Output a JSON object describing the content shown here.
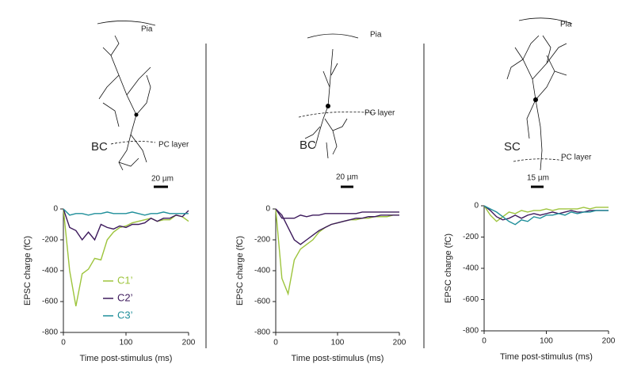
{
  "chart_data": [
    {
      "type": "line",
      "xlabel": "Time post-stimulus (ms)",
      "ylabel": "EPSC charge (fC)",
      "annotations": [
        "Pia",
        "BC",
        "PC layer",
        "20 µm"
      ],
      "x": [
        0,
        10,
        20,
        30,
        40,
        50,
        60,
        70,
        80,
        90,
        100,
        110,
        120,
        130,
        140,
        150,
        160,
        170,
        180,
        190,
        200
      ],
      "series": [
        {
          "name": "C1’",
          "color": "#9dc43c",
          "values": [
            0,
            -400,
            -630,
            -420,
            -390,
            -320,
            -330,
            -200,
            -150,
            -120,
            -110,
            -90,
            -80,
            -70,
            -60,
            -80,
            -70,
            -70,
            -40,
            -50,
            -80
          ]
        },
        {
          "name": "C2’",
          "color": "#3d1a5c",
          "values": [
            0,
            -120,
            -140,
            -200,
            -150,
            -200,
            -100,
            -120,
            -130,
            -110,
            -120,
            -100,
            -100,
            -90,
            -60,
            -80,
            -60,
            -60,
            -40,
            -50,
            -10
          ]
        },
        {
          "name": "C3’",
          "color": "#1f8f9a",
          "values": [
            0,
            -40,
            -30,
            -30,
            -40,
            -30,
            -30,
            -20,
            -30,
            -30,
            -30,
            -20,
            -30,
            -40,
            -30,
            -30,
            -20,
            -30,
            -30,
            -30,
            -30
          ]
        }
      ],
      "xlim": [
        0,
        200
      ],
      "xticks": [
        0,
        100,
        200
      ],
      "ylim": [
        -800,
        0
      ],
      "yticks": [
        0,
        -200,
        -400,
        -600,
        -800
      ]
    },
    {
      "type": "line",
      "xlabel": "Time post-stimulus (ms)",
      "ylabel": "EPSC charge (fC)",
      "annotations": [
        "Pia",
        "PC layer",
        "BC",
        "20 µm"
      ],
      "x": [
        0,
        10,
        20,
        30,
        40,
        50,
        60,
        70,
        80,
        90,
        100,
        110,
        120,
        130,
        140,
        150,
        160,
        170,
        180,
        190,
        200
      ],
      "series": [
        {
          "color": "#9dc43c",
          "values": [
            0,
            -450,
            -550,
            -330,
            -260,
            -230,
            -200,
            -150,
            -120,
            -100,
            -90,
            -80,
            -70,
            -70,
            -60,
            -60,
            -50,
            -50,
            -50,
            -40,
            -40
          ]
        },
        {
          "color": "#3d1a5c",
          "values": [
            0,
            -60,
            -60,
            -60,
            -40,
            -50,
            -40,
            -40,
            -30,
            -30,
            -30,
            -30,
            -30,
            -30,
            -20,
            -20,
            -20,
            -20,
            -20,
            -20,
            -20
          ]
        },
        {
          "color": "#3d1a5c",
          "values": [
            0,
            -40,
            -120,
            -200,
            -230,
            -200,
            -170,
            -140,
            -120,
            -100,
            -90,
            -80,
            -70,
            -60,
            -60,
            -50,
            -50,
            -40,
            -40,
            -40,
            -40
          ]
        }
      ],
      "xlim": [
        0,
        200
      ],
      "xticks": [
        0,
        100,
        200
      ],
      "ylim": [
        -800,
        0
      ],
      "yticks": [
        0,
        -200,
        -400,
        -600,
        -800
      ]
    },
    {
      "type": "line",
      "xlabel": "Time post-stimulus (ms)",
      "ylabel": "EPSC charge (fC)",
      "annotations": [
        "Pia",
        "SC",
        "PC layer",
        "15 µm"
      ],
      "x": [
        0,
        10,
        20,
        30,
        40,
        50,
        60,
        70,
        80,
        90,
        100,
        110,
        120,
        130,
        140,
        150,
        160,
        170,
        180,
        190,
        200
      ],
      "series": [
        {
          "color": "#9dc43c",
          "values": [
            0,
            -60,
            -100,
            -70,
            -40,
            -50,
            -30,
            -40,
            -30,
            -30,
            -20,
            -30,
            -20,
            -20,
            -20,
            -20,
            -10,
            -20,
            -10,
            -10,
            -10
          ]
        },
        {
          "color": "#3d1a5c",
          "values": [
            0,
            -30,
            -70,
            -90,
            -80,
            -60,
            -80,
            -60,
            -50,
            -60,
            -50,
            -40,
            -50,
            -40,
            -30,
            -40,
            -40,
            -30,
            -30,
            -30,
            -30
          ]
        },
        {
          "color": "#1f8f9a",
          "values": [
            0,
            -20,
            -40,
            -70,
            -100,
            -120,
            -90,
            -100,
            -70,
            -80,
            -60,
            -60,
            -50,
            -60,
            -40,
            -50,
            -40,
            -40,
            -30,
            -30,
            -30
          ]
        }
      ],
      "xlim": [
        0,
        200
      ],
      "xticks": [
        0,
        100,
        200
      ],
      "ylim": [
        -800,
        0
      ],
      "yticks": [
        0,
        -200,
        -400,
        -600,
        -800
      ]
    }
  ]
}
